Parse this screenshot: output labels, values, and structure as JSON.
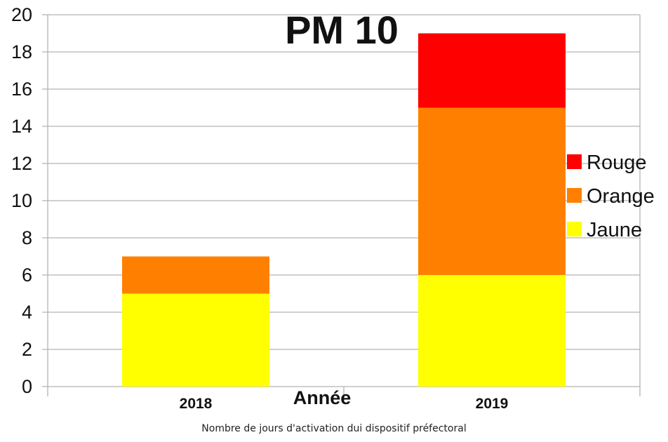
{
  "chart_data": {
    "type": "bar",
    "stacked": true,
    "title": "PM 10",
    "xlabel": "Année",
    "ylabel": "",
    "categories": [
      "2018",
      "2019"
    ],
    "ylim": [
      0,
      20
    ],
    "yticks": [
      "0",
      "2",
      "4",
      "6",
      "8",
      "10",
      "12",
      "14",
      "16",
      "18",
      "20"
    ],
    "grid": true,
    "legend_position": "right",
    "series": [
      {
        "name": "Jaune",
        "color": "#ffff00",
        "values": [
          5,
          6
        ]
      },
      {
        "name": "Orange",
        "color": "#ff8000",
        "values": [
          2,
          9
        ]
      },
      {
        "name": "Rouge",
        "color": "#ff0000",
        "values": [
          0,
          4
        ]
      }
    ],
    "legend_order": [
      "Rouge",
      "Orange",
      "Jaune"
    ]
  },
  "caption": "Nombre de jours d'activation dui dispositif préfectoral"
}
